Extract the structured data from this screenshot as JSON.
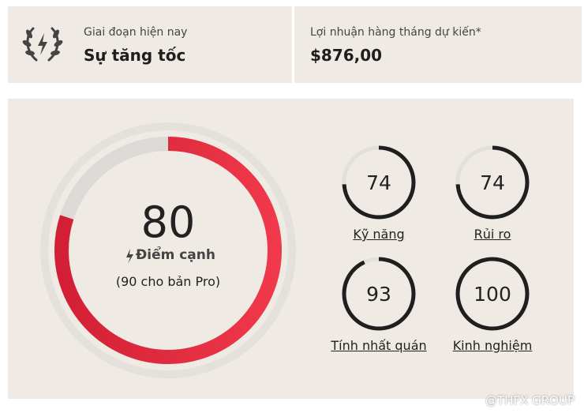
{
  "header": {
    "stage": {
      "label": "Giai đoạn hiện nay",
      "value": "Sự tăng tốc"
    },
    "profit": {
      "label": "Lợi nhuận hàng tháng dự kiến*",
      "value": "$876,00"
    }
  },
  "gauge_range": [
    0,
    100
  ],
  "main_score": {
    "value": 80,
    "label": "Điểm cạnh",
    "note": "(90 cho bản Pro)"
  },
  "metrics": [
    {
      "value": 74,
      "label": "Kỹ năng"
    },
    {
      "value": 74,
      "label": "Rủi ro"
    },
    {
      "value": 93,
      "label": "Tính nhất quán"
    },
    {
      "value": 100,
      "label": "Kinh nghiệm"
    }
  ],
  "watermark": "@THFX GROUP"
}
